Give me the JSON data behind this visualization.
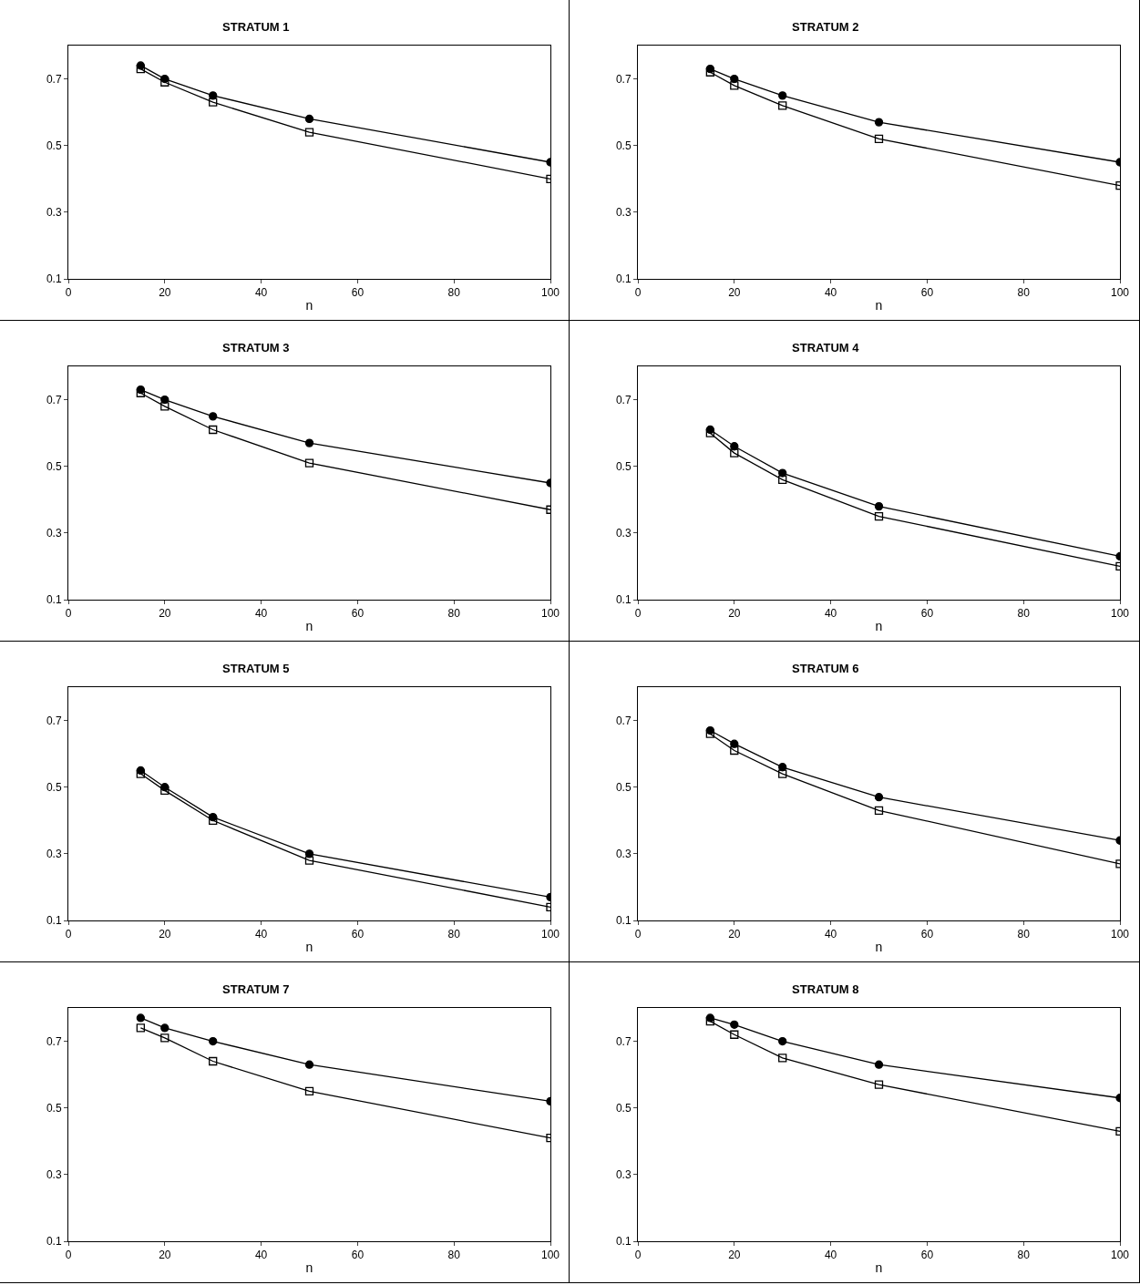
{
  "chart_data": [
    {
      "type": "line",
      "title": "STRATUM 1",
      "xlabel": "n",
      "x": [
        15,
        20,
        30,
        50,
        100
      ],
      "xlim": [
        0,
        100
      ],
      "xticks": [
        0,
        20,
        40,
        60,
        80,
        100
      ],
      "ylim": [
        0.1,
        0.8
      ],
      "yticks": [
        0.1,
        0.3,
        0.5,
        0.7
      ],
      "grid": false,
      "series": [
        {
          "color": "#000000",
          "marker": "circle",
          "values": [
            0.74,
            0.7,
            0.65,
            0.58,
            0.45
          ]
        },
        {
          "color": "#000000",
          "marker": "square",
          "values": [
            0.73,
            0.69,
            0.63,
            0.54,
            0.4
          ]
        }
      ]
    },
    {
      "type": "line",
      "title": "STRATUM 2",
      "xlabel": "n",
      "x": [
        15,
        20,
        30,
        50,
        100
      ],
      "xlim": [
        0,
        100
      ],
      "xticks": [
        0,
        20,
        40,
        60,
        80,
        100
      ],
      "ylim": [
        0.1,
        0.8
      ],
      "yticks": [
        0.1,
        0.3,
        0.5,
        0.7
      ],
      "grid": false,
      "series": [
        {
          "color": "#000000",
          "marker": "circle",
          "values": [
            0.73,
            0.7,
            0.65,
            0.57,
            0.45
          ]
        },
        {
          "color": "#000000",
          "marker": "square",
          "values": [
            0.72,
            0.68,
            0.62,
            0.52,
            0.38
          ]
        }
      ]
    },
    {
      "type": "line",
      "title": "STRATUM 3",
      "xlabel": "n",
      "x": [
        15,
        20,
        30,
        50,
        100
      ],
      "xlim": [
        0,
        100
      ],
      "xticks": [
        0,
        20,
        40,
        60,
        80,
        100
      ],
      "ylim": [
        0.1,
        0.8
      ],
      "yticks": [
        0.1,
        0.3,
        0.5,
        0.7
      ],
      "grid": false,
      "series": [
        {
          "color": "#000000",
          "marker": "circle",
          "values": [
            0.73,
            0.7,
            0.65,
            0.57,
            0.45
          ]
        },
        {
          "color": "#000000",
          "marker": "square",
          "values": [
            0.72,
            0.68,
            0.61,
            0.51,
            0.37
          ]
        }
      ]
    },
    {
      "type": "line",
      "title": "STRATUM 4",
      "xlabel": "n",
      "x": [
        15,
        20,
        30,
        50,
        100
      ],
      "xlim": [
        0,
        100
      ],
      "xticks": [
        0,
        20,
        40,
        60,
        80,
        100
      ],
      "ylim": [
        0.1,
        0.8
      ],
      "yticks": [
        0.1,
        0.3,
        0.5,
        0.7
      ],
      "grid": false,
      "series": [
        {
          "color": "#000000",
          "marker": "circle",
          "values": [
            0.61,
            0.56,
            0.48,
            0.38,
            0.23
          ]
        },
        {
          "color": "#000000",
          "marker": "square",
          "values": [
            0.6,
            0.54,
            0.46,
            0.35,
            0.2
          ]
        }
      ]
    },
    {
      "type": "line",
      "title": "STRATUM 5",
      "xlabel": "n",
      "x": [
        15,
        20,
        30,
        50,
        100
      ],
      "xlim": [
        0,
        100
      ],
      "xticks": [
        0,
        20,
        40,
        60,
        80,
        100
      ],
      "ylim": [
        0.1,
        0.8
      ],
      "yticks": [
        0.1,
        0.3,
        0.5,
        0.7
      ],
      "grid": false,
      "series": [
        {
          "color": "#000000",
          "marker": "circle",
          "values": [
            0.55,
            0.5,
            0.41,
            0.3,
            0.17
          ]
        },
        {
          "color": "#000000",
          "marker": "square",
          "values": [
            0.54,
            0.49,
            0.4,
            0.28,
            0.14
          ]
        }
      ]
    },
    {
      "type": "line",
      "title": "STRATUM 6",
      "xlabel": "n",
      "x": [
        15,
        20,
        30,
        50,
        100
      ],
      "xlim": [
        0,
        100
      ],
      "xticks": [
        0,
        20,
        40,
        60,
        80,
        100
      ],
      "ylim": [
        0.1,
        0.8
      ],
      "yticks": [
        0.1,
        0.3,
        0.5,
        0.7
      ],
      "grid": false,
      "series": [
        {
          "color": "#000000",
          "marker": "circle",
          "values": [
            0.67,
            0.63,
            0.56,
            0.47,
            0.34
          ]
        },
        {
          "color": "#000000",
          "marker": "square",
          "values": [
            0.66,
            0.61,
            0.54,
            0.43,
            0.27
          ]
        }
      ]
    },
    {
      "type": "line",
      "title": "STRATUM 7",
      "xlabel": "n",
      "x": [
        15,
        20,
        30,
        50,
        100
      ],
      "xlim": [
        0,
        100
      ],
      "xticks": [
        0,
        20,
        40,
        60,
        80,
        100
      ],
      "ylim": [
        0.1,
        0.8
      ],
      "yticks": [
        0.1,
        0.3,
        0.5,
        0.7
      ],
      "grid": false,
      "series": [
        {
          "color": "#000000",
          "marker": "circle",
          "values": [
            0.77,
            0.74,
            0.7,
            0.63,
            0.52
          ]
        },
        {
          "color": "#000000",
          "marker": "square",
          "values": [
            0.74,
            0.71,
            0.64,
            0.55,
            0.41
          ]
        }
      ]
    },
    {
      "type": "line",
      "title": "STRATUM 8",
      "xlabel": "n",
      "x": [
        15,
        20,
        30,
        50,
        100
      ],
      "xlim": [
        0,
        100
      ],
      "xticks": [
        0,
        20,
        40,
        60,
        80,
        100
      ],
      "ylim": [
        0.1,
        0.8
      ],
      "yticks": [
        0.1,
        0.3,
        0.5,
        0.7
      ],
      "grid": false,
      "series": [
        {
          "color": "#000000",
          "marker": "circle",
          "values": [
            0.77,
            0.75,
            0.7,
            0.63,
            0.53
          ]
        },
        {
          "color": "#000000",
          "marker": "square",
          "values": [
            0.76,
            0.72,
            0.65,
            0.57,
            0.43
          ]
        }
      ]
    }
  ]
}
